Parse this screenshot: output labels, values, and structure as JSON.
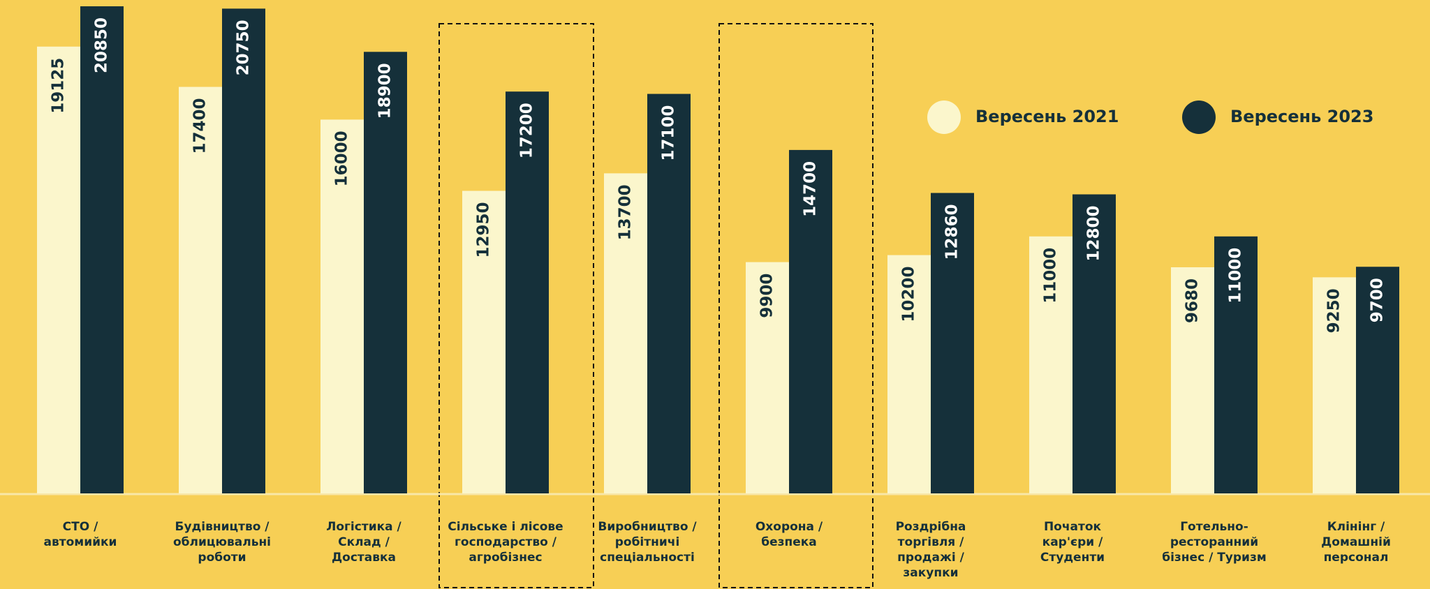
{
  "chart_data": {
    "type": "bar",
    "categories": [
      [
        "СТО /",
        "автомийки"
      ],
      [
        "Будівництво /",
        "облицювальні",
        "роботи"
      ],
      [
        "Логістика /",
        "Склад /",
        "Доставка"
      ],
      [
        "Сільське і лісове",
        "господарство /",
        "агробізнес"
      ],
      [
        "Виробництво /",
        "робітничі",
        "спеціальності"
      ],
      [
        "Охорона /",
        "безпека"
      ],
      [
        "Роздрібна",
        "торгівля /",
        "продажі /",
        "закупки"
      ],
      [
        "Початок",
        "кар'єри /",
        "Студенти"
      ],
      [
        "Готельно-",
        "ресторанний",
        "бізнес / Туризм"
      ],
      [
        "Клінінг /",
        "Домашній",
        "персонал"
      ]
    ],
    "series": [
      {
        "name": "Вересень 2021",
        "color": "#fbf6cc",
        "values": [
          19125,
          17400,
          16000,
          12950,
          13700,
          9900,
          10200,
          11000,
          9680,
          9250
        ]
      },
      {
        "name": "Вересень 2023",
        "color": "#15303a",
        "values": [
          20850,
          20750,
          18900,
          17200,
          17100,
          14700,
          12860,
          12800,
          11000,
          9700
        ]
      }
    ],
    "ylim": [
      0,
      21000
    ]
  }
}
